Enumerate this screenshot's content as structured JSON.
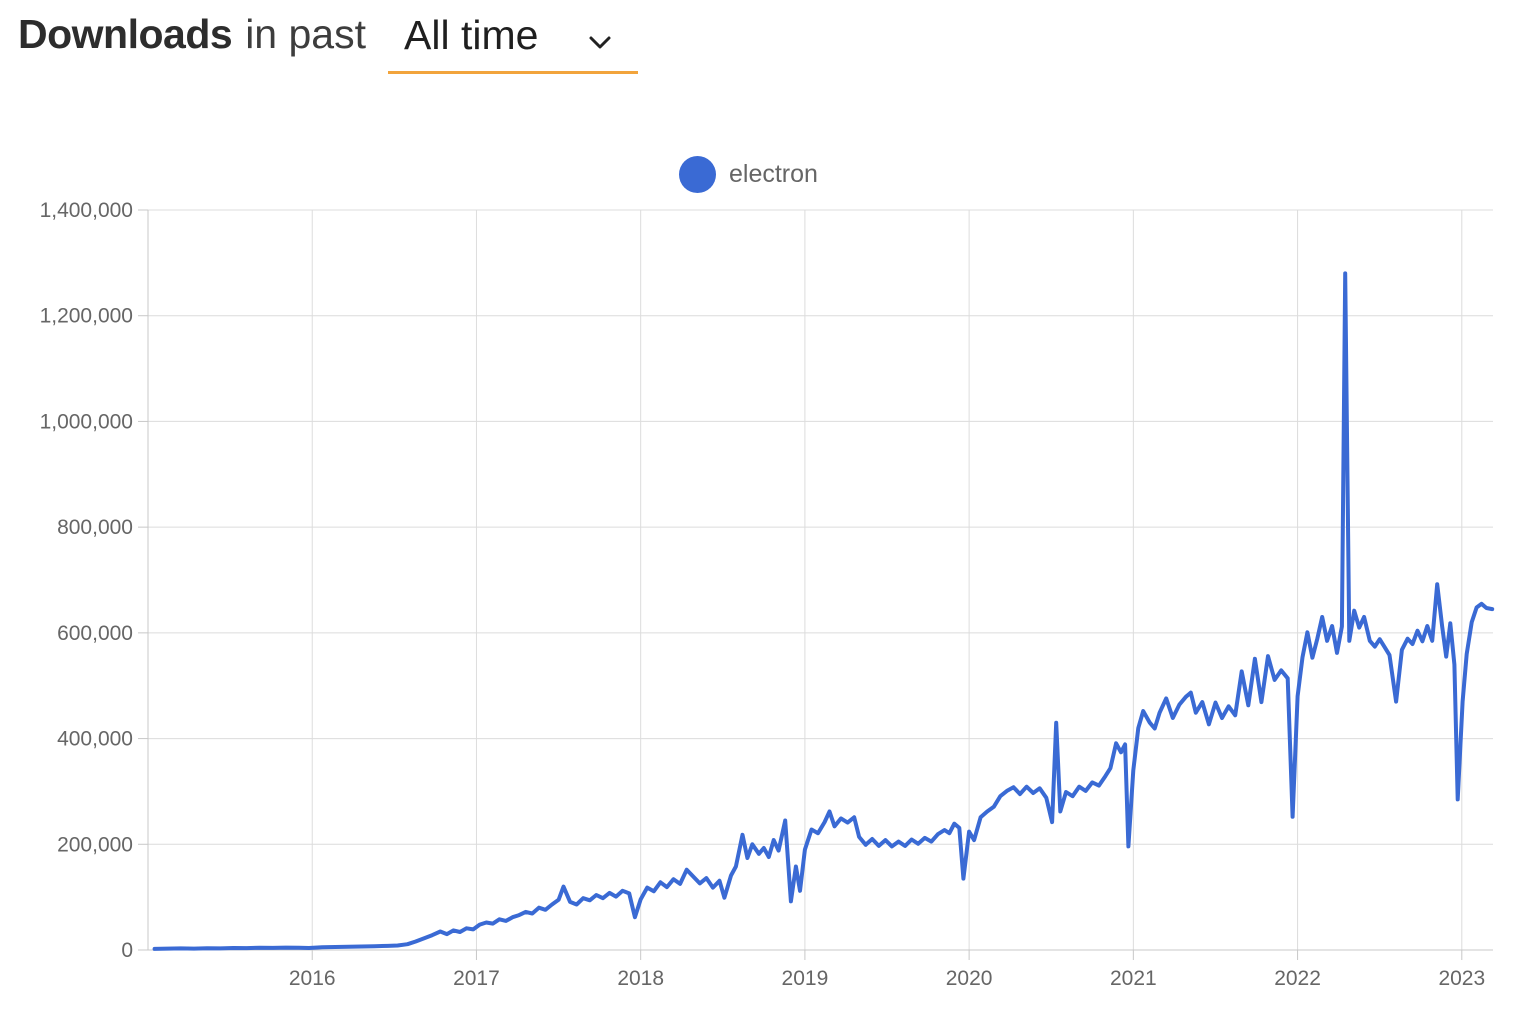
{
  "header": {
    "title_bold": "Downloads",
    "title_rest": "in past",
    "range_value": "All time",
    "accent_color": "#F2A43C"
  },
  "legend": [
    {
      "label": "electron",
      "color": "#3A6AD4"
    }
  ],
  "chart_data": {
    "type": "line",
    "title": "Downloads in past All time",
    "xlabel": "",
    "ylabel": "",
    "x_range": [
      2015.0,
      2023.19
    ],
    "y_range": [
      0,
      1400000
    ],
    "x_ticks": [
      2016,
      2017,
      2018,
      2019,
      2020,
      2021,
      2022,
      2023
    ],
    "y_ticks": [
      0,
      200000,
      400000,
      600000,
      800000,
      1000000,
      1200000,
      1400000
    ],
    "grid": true,
    "grid_color": "#DCDCDC",
    "axis_color": "#C8C8C8",
    "tick_label_color": "#666666",
    "legend_position": "top-center",
    "line_width": 4,
    "series": [
      {
        "name": "electron",
        "color": "#3A6AD4",
        "points": [
          [
            2015.04,
            2000
          ],
          [
            2015.12,
            2600
          ],
          [
            2015.2,
            3000
          ],
          [
            2015.28,
            2700
          ],
          [
            2015.36,
            3300
          ],
          [
            2015.44,
            3100
          ],
          [
            2015.52,
            3700
          ],
          [
            2015.6,
            3500
          ],
          [
            2015.68,
            4100
          ],
          [
            2015.76,
            3900
          ],
          [
            2015.84,
            4500
          ],
          [
            2015.92,
            4300
          ],
          [
            2015.98,
            3800
          ],
          [
            2016.06,
            5200
          ],
          [
            2016.14,
            5700
          ],
          [
            2016.22,
            6200
          ],
          [
            2016.3,
            6700
          ],
          [
            2016.38,
            7200
          ],
          [
            2016.46,
            7800
          ],
          [
            2016.52,
            8500
          ],
          [
            2016.58,
            11000
          ],
          [
            2016.63,
            16000
          ],
          [
            2016.68,
            22000
          ],
          [
            2016.73,
            28000
          ],
          [
            2016.78,
            35000
          ],
          [
            2016.82,
            30000
          ],
          [
            2016.86,
            37000
          ],
          [
            2016.9,
            34000
          ],
          [
            2016.94,
            41000
          ],
          [
            2016.98,
            39000
          ],
          [
            2017.02,
            48000
          ],
          [
            2017.06,
            52000
          ],
          [
            2017.1,
            50000
          ],
          [
            2017.14,
            58000
          ],
          [
            2017.18,
            55000
          ],
          [
            2017.22,
            62000
          ],
          [
            2017.26,
            66000
          ],
          [
            2017.3,
            72000
          ],
          [
            2017.34,
            69000
          ],
          [
            2017.38,
            80000
          ],
          [
            2017.42,
            76000
          ],
          [
            2017.46,
            86000
          ],
          [
            2017.5,
            95000
          ],
          [
            2017.53,
            120000
          ],
          [
            2017.57,
            91000
          ],
          [
            2017.61,
            86000
          ],
          [
            2017.65,
            98000
          ],
          [
            2017.69,
            94000
          ],
          [
            2017.73,
            104000
          ],
          [
            2017.77,
            98000
          ],
          [
            2017.81,
            108000
          ],
          [
            2017.85,
            101000
          ],
          [
            2017.89,
            112000
          ],
          [
            2017.93,
            107000
          ],
          [
            2017.965,
            62000
          ],
          [
            2018.0,
            96000
          ],
          [
            2018.04,
            118000
          ],
          [
            2018.08,
            111000
          ],
          [
            2018.12,
            128000
          ],
          [
            2018.16,
            119000
          ],
          [
            2018.2,
            134000
          ],
          [
            2018.24,
            125000
          ],
          [
            2018.28,
            152000
          ],
          [
            2018.32,
            139000
          ],
          [
            2018.36,
            126000
          ],
          [
            2018.4,
            136000
          ],
          [
            2018.44,
            118000
          ],
          [
            2018.48,
            131000
          ],
          [
            2018.51,
            99000
          ],
          [
            2018.55,
            141000
          ],
          [
            2018.58,
            158000
          ],
          [
            2018.62,
            218000
          ],
          [
            2018.65,
            174000
          ],
          [
            2018.68,
            200000
          ],
          [
            2018.72,
            182000
          ],
          [
            2018.75,
            193000
          ],
          [
            2018.78,
            176000
          ],
          [
            2018.81,
            208000
          ],
          [
            2018.84,
            188000
          ],
          [
            2018.88,
            245000
          ],
          [
            2018.915,
            92000
          ],
          [
            2018.945,
            158000
          ],
          [
            2018.97,
            112000
          ],
          [
            2019.0,
            190000
          ],
          [
            2019.04,
            228000
          ],
          [
            2019.08,
            221000
          ],
          [
            2019.12,
            242000
          ],
          [
            2019.15,
            262000
          ],
          [
            2019.18,
            234000
          ],
          [
            2019.22,
            249000
          ],
          [
            2019.26,
            241000
          ],
          [
            2019.3,
            251000
          ],
          [
            2019.33,
            214000
          ],
          [
            2019.37,
            199000
          ],
          [
            2019.41,
            210000
          ],
          [
            2019.45,
            197000
          ],
          [
            2019.49,
            208000
          ],
          [
            2019.53,
            196000
          ],
          [
            2019.57,
            205000
          ],
          [
            2019.61,
            197000
          ],
          [
            2019.65,
            209000
          ],
          [
            2019.69,
            201000
          ],
          [
            2019.73,
            212000
          ],
          [
            2019.77,
            205000
          ],
          [
            2019.81,
            219000
          ],
          [
            2019.85,
            227000
          ],
          [
            2019.88,
            221000
          ],
          [
            2019.91,
            239000
          ],
          [
            2019.94,
            231000
          ],
          [
            2019.965,
            135000
          ],
          [
            2020.0,
            224000
          ],
          [
            2020.03,
            208000
          ],
          [
            2020.07,
            251000
          ],
          [
            2020.11,
            262000
          ],
          [
            2020.15,
            271000
          ],
          [
            2020.19,
            291000
          ],
          [
            2020.23,
            301000
          ],
          [
            2020.27,
            308000
          ],
          [
            2020.31,
            295000
          ],
          [
            2020.35,
            309000
          ],
          [
            2020.39,
            297000
          ],
          [
            2020.43,
            306000
          ],
          [
            2020.47,
            288000
          ],
          [
            2020.505,
            242000
          ],
          [
            2020.53,
            430000
          ],
          [
            2020.555,
            262000
          ],
          [
            2020.59,
            299000
          ],
          [
            2020.63,
            291000
          ],
          [
            2020.67,
            309000
          ],
          [
            2020.71,
            301000
          ],
          [
            2020.75,
            317000
          ],
          [
            2020.79,
            311000
          ],
          [
            2020.83,
            329000
          ],
          [
            2020.86,
            344000
          ],
          [
            2020.895,
            391000
          ],
          [
            2020.925,
            374000
          ],
          [
            2020.95,
            389000
          ],
          [
            2020.97,
            196000
          ],
          [
            2021.0,
            340000
          ],
          [
            2021.03,
            420000
          ],
          [
            2021.06,
            452000
          ],
          [
            2021.1,
            430000
          ],
          [
            2021.13,
            419000
          ],
          [
            2021.16,
            449000
          ],
          [
            2021.2,
            476000
          ],
          [
            2021.24,
            439000
          ],
          [
            2021.28,
            464000
          ],
          [
            2021.32,
            479000
          ],
          [
            2021.35,
            487000
          ],
          [
            2021.38,
            449000
          ],
          [
            2021.42,
            469000
          ],
          [
            2021.46,
            427000
          ],
          [
            2021.5,
            468000
          ],
          [
            2021.54,
            439000
          ],
          [
            2021.58,
            461000
          ],
          [
            2021.62,
            444000
          ],
          [
            2021.66,
            527000
          ],
          [
            2021.7,
            463000
          ],
          [
            2021.74,
            551000
          ],
          [
            2021.78,
            469000
          ],
          [
            2021.82,
            556000
          ],
          [
            2021.86,
            511000
          ],
          [
            2021.9,
            529000
          ],
          [
            2021.94,
            514000
          ],
          [
            2021.97,
            252000
          ],
          [
            2022.0,
            480000
          ],
          [
            2022.03,
            554000
          ],
          [
            2022.06,
            601000
          ],
          [
            2022.09,
            553000
          ],
          [
            2022.12,
            589000
          ],
          [
            2022.15,
            630000
          ],
          [
            2022.18,
            585000
          ],
          [
            2022.21,
            613000
          ],
          [
            2022.24,
            562000
          ],
          [
            2022.27,
            612000
          ],
          [
            2022.29,
            1280000
          ],
          [
            2022.315,
            585000
          ],
          [
            2022.345,
            642000
          ],
          [
            2022.375,
            610000
          ],
          [
            2022.405,
            630000
          ],
          [
            2022.44,
            585000
          ],
          [
            2022.47,
            574000
          ],
          [
            2022.5,
            588000
          ],
          [
            2022.53,
            573000
          ],
          [
            2022.56,
            558000
          ],
          [
            2022.6,
            470000
          ],
          [
            2022.635,
            568000
          ],
          [
            2022.67,
            589000
          ],
          [
            2022.7,
            579000
          ],
          [
            2022.73,
            604000
          ],
          [
            2022.76,
            584000
          ],
          [
            2022.79,
            613000
          ],
          [
            2022.82,
            585000
          ],
          [
            2022.85,
            692000
          ],
          [
            2022.88,
            613000
          ],
          [
            2022.905,
            555000
          ],
          [
            2022.93,
            618000
          ],
          [
            2022.955,
            540000
          ],
          [
            2022.975,
            285000
          ],
          [
            2023.005,
            470000
          ],
          [
            2023.03,
            560000
          ],
          [
            2023.06,
            620000
          ],
          [
            2023.09,
            648000
          ],
          [
            2023.12,
            655000
          ],
          [
            2023.15,
            647000
          ],
          [
            2023.185,
            645000
          ]
        ]
      }
    ]
  }
}
